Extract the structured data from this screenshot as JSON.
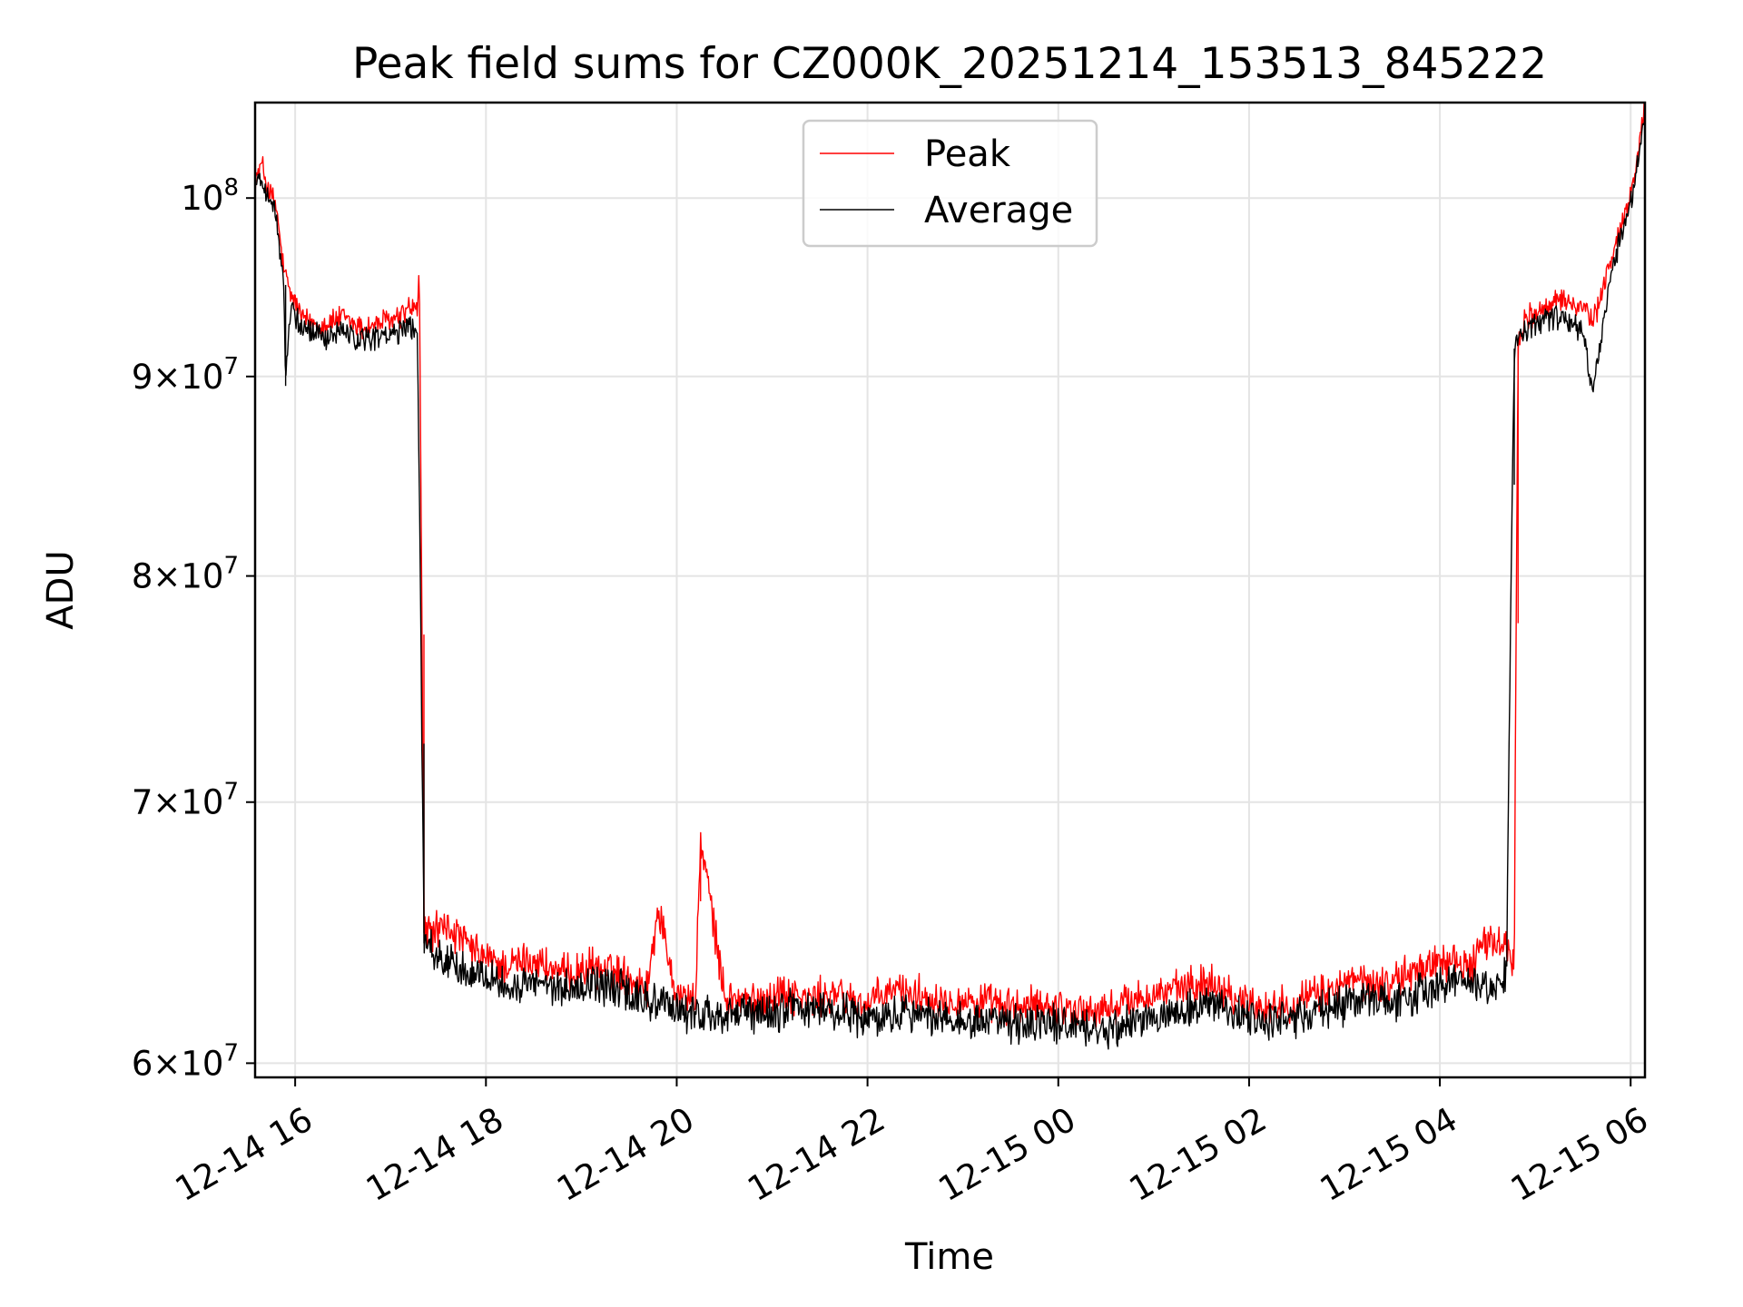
{
  "chart_data": {
    "type": "line",
    "title": "Peak field sums for CZ000K_20251214_153513_845222",
    "xlabel": "Time",
    "ylabel": "ADU",
    "yscale": "log",
    "xlim": [
      15.58,
      30.15
    ],
    "ylim": [
      59500000,
      105800000
    ],
    "grid": true,
    "legend_position": "top-center",
    "x_unit": "hours since 2025-12-14 00:00",
    "x_ticks": [
      {
        "value": 16,
        "label": "12-14 16"
      },
      {
        "value": 18,
        "label": "12-14 18"
      },
      {
        "value": 20,
        "label": "12-14 20"
      },
      {
        "value": 22,
        "label": "12-14 22"
      },
      {
        "value": 24,
        "label": "12-15 00"
      },
      {
        "value": 26,
        "label": "12-15 02"
      },
      {
        "value": 28,
        "label": "12-15 04"
      },
      {
        "value": 30,
        "label": "12-15 06"
      }
    ],
    "y_ticks": [
      {
        "value": 60000000,
        "mantissa": "6",
        "base": "10",
        "exp": "7"
      },
      {
        "value": 70000000,
        "mantissa": "7",
        "base": "10",
        "exp": "7"
      },
      {
        "value": 80000000,
        "mantissa": "8",
        "base": "10",
        "exp": "7"
      },
      {
        "value": 90000000,
        "mantissa": "9",
        "base": "10",
        "exp": "7"
      },
      {
        "value": 100000000,
        "mantissa": "",
        "base": "10",
        "exp": "8"
      }
    ],
    "series": [
      {
        "name": "Peak",
        "color": "#ff0000",
        "x": [
          15.58,
          15.65,
          15.72,
          15.8,
          15.88,
          15.95,
          16.1,
          16.3,
          16.5,
          16.7,
          16.9,
          17.1,
          17.2,
          17.28,
          17.3,
          17.35,
          17.6,
          17.9,
          18.2,
          18.5,
          18.8,
          19.1,
          19.4,
          19.7,
          19.8,
          20.0,
          20.2,
          20.25,
          20.5,
          20.8,
          21.1,
          21.4,
          21.7,
          22.0,
          22.3,
          22.6,
          22.9,
          23.2,
          23.5,
          23.8,
          24.1,
          24.4,
          24.7,
          25.0,
          25.3,
          25.6,
          25.9,
          26.2,
          26.5,
          26.8,
          27.1,
          27.4,
          27.7,
          28.0,
          28.3,
          28.5,
          28.7,
          28.78,
          28.82,
          28.9,
          29.1,
          29.3,
          29.5,
          29.6,
          29.8,
          30.0,
          30.15
        ],
        "y": [
          101000000,
          102000000,
          100500000,
          99500000,
          95800000,
          94500000,
          93000000,
          92800000,
          93200000,
          92600000,
          92900000,
          93200000,
          93800000,
          93500000,
          96000000,
          64800000,
          65000000,
          64000000,
          63500000,
          63800000,
          63200000,
          63500000,
          63300000,
          62800000,
          65800000,
          62500000,
          62300000,
          68500000,
          62400000,
          62200000,
          62600000,
          62300000,
          62500000,
          62100000,
          62700000,
          62400000,
          62300000,
          62200000,
          62000000,
          62100000,
          62000000,
          61800000,
          62200000,
          62500000,
          62700000,
          63000000,
          62300000,
          62000000,
          62200000,
          62600000,
          63000000,
          62800000,
          63300000,
          63800000,
          63500000,
          64500000,
          64300000,
          63600000,
          92000000,
          93200000,
          93600000,
          94200000,
          93800000,
          92800000,
          96500000,
          100200000,
          105500000
        ]
      },
      {
        "name": "Average",
        "color": "#000000",
        "x": [
          15.58,
          15.65,
          15.72,
          15.8,
          15.88,
          15.9,
          15.95,
          16.1,
          16.3,
          16.5,
          16.7,
          16.9,
          17.1,
          17.2,
          17.28,
          17.35,
          17.6,
          17.9,
          18.2,
          18.5,
          18.8,
          19.1,
          19.4,
          19.7,
          20.0,
          20.3,
          20.6,
          20.9,
          21.2,
          21.5,
          21.8,
          22.1,
          22.4,
          22.7,
          23.0,
          23.3,
          23.6,
          23.9,
          24.2,
          24.5,
          24.8,
          25.1,
          25.4,
          25.7,
          26.0,
          26.3,
          26.6,
          26.9,
          27.2,
          27.5,
          27.8,
          28.1,
          28.4,
          28.7,
          28.78,
          28.82,
          28.9,
          29.1,
          29.3,
          29.5,
          29.6,
          29.8,
          30.0,
          30.15
        ],
        "y": [
          100800000,
          101200000,
          100000000,
          99000000,
          95000000,
          89500000,
          94000000,
          92300000,
          92100000,
          92500000,
          92000000,
          92200000,
          92500000,
          92800000,
          92600000,
          64400000,
          63800000,
          63200000,
          62800000,
          63000000,
          62600000,
          62900000,
          62700000,
          62200000,
          61900000,
          61800000,
          61700000,
          61700000,
          62000000,
          61900000,
          61800000,
          61500000,
          61900000,
          61600000,
          61600000,
          61500000,
          61400000,
          61500000,
          61300000,
          61100000,
          61500000,
          61800000,
          62000000,
          62200000,
          61600000,
          61500000,
          61700000,
          62000000,
          62300000,
          62100000,
          62600000,
          63000000,
          62800000,
          63200000,
          91500000,
          92000000,
          92500000,
          92900000,
          93200000,
          92400000,
          89000000,
          95800000,
          99800000,
          104800000
        ]
      }
    ]
  }
}
